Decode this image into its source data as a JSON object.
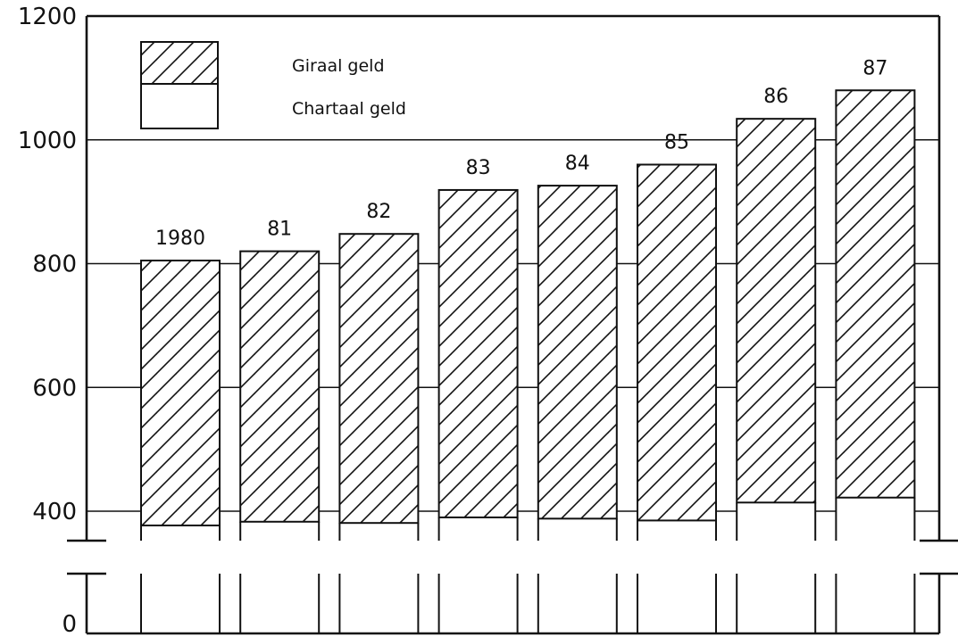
{
  "chart_data": {
    "type": "bar",
    "stacked": true,
    "title": "",
    "xlabel": "",
    "ylabel": "",
    "categories": [
      "1980",
      "81",
      "82",
      "83",
      "84",
      "85",
      "86",
      "87"
    ],
    "series": [
      {
        "name": "Chartaal geld",
        "values": [
          377,
          383,
          381,
          390,
          388,
          385,
          414,
          422
        ]
      },
      {
        "name": "Giraal geld",
        "values": [
          428,
          437,
          467,
          529,
          538,
          575,
          620,
          658
        ]
      }
    ],
    "totals": [
      805,
      820,
      848,
      919,
      926,
      960,
      1034,
      1080
    ],
    "y_ticks": [
      "0",
      "400",
      "600",
      "800",
      "1000",
      "1200"
    ],
    "ylim": [
      0,
      1200
    ],
    "axis_break": [
      0,
      365
    ],
    "grid": true,
    "legend_position": "top-left",
    "colors": {
      "ink": "#111111",
      "background": "#ffffff"
    }
  },
  "legend": {
    "giraal": "Giraal geld",
    "chartaal": "Chartaal geld"
  }
}
